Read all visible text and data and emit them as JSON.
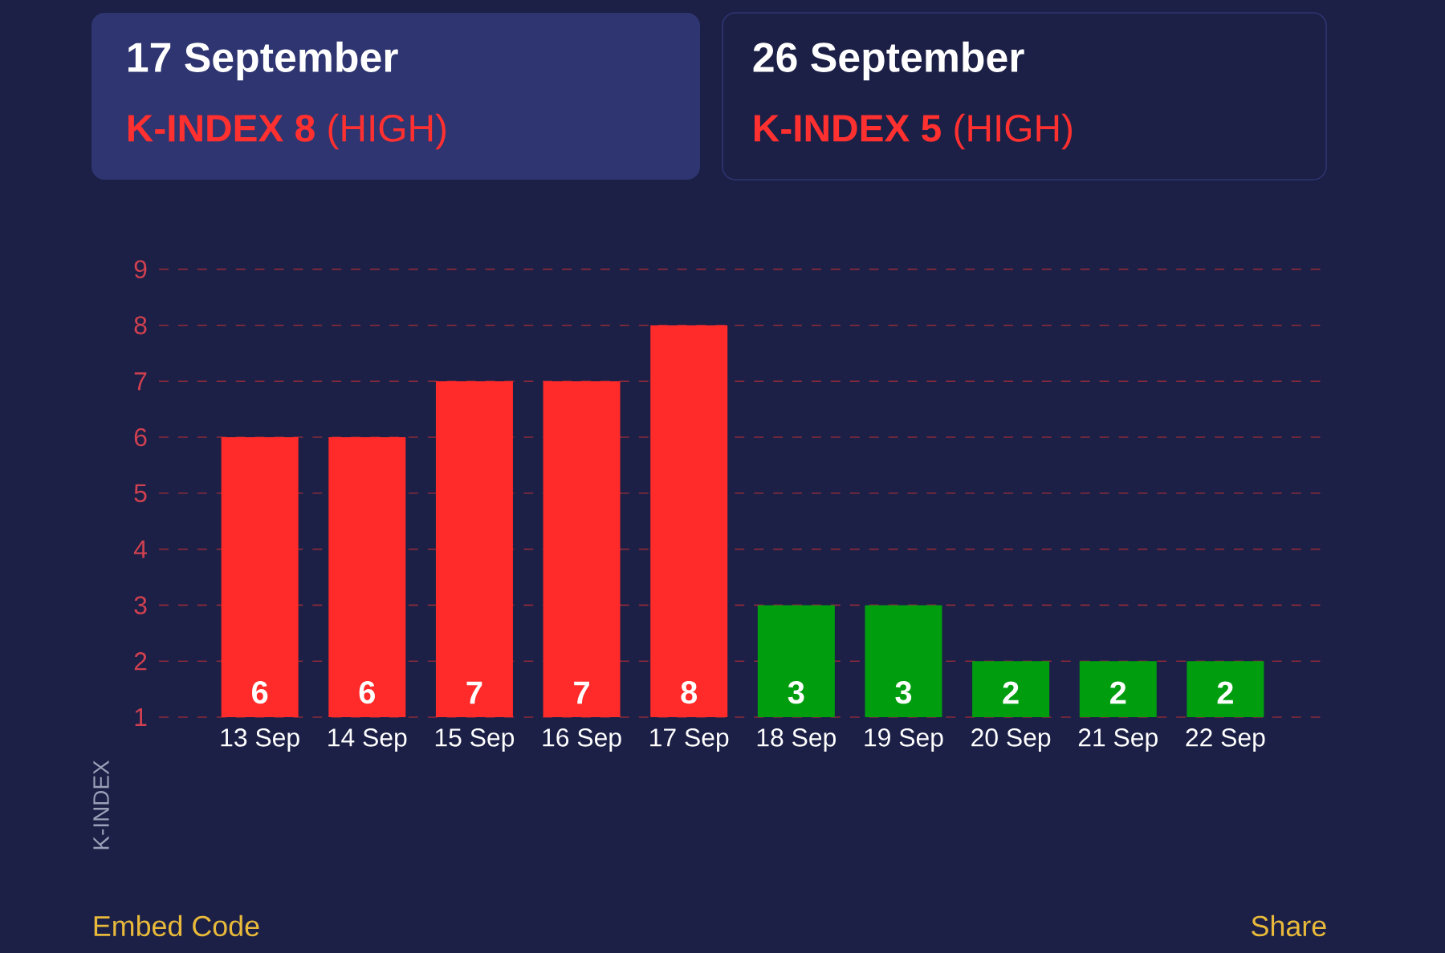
{
  "chart_data": {
    "type": "bar",
    "annotations": [
      "17 September",
      "**K-INDEX 8** (HIGH)",
      "26 September",
      "**K-INDEX 5** (HIGH)",
      "Embed Code",
      "Share",
      "K-INDEX"
    ],
    "categories": [
      "13 Sep",
      "14 Sep",
      "15 Sep",
      "16 Sep",
      "17 Sep",
      "18 Sep",
      "19 Sep",
      "20 Sep",
      "21 Sep",
      "22 Sep"
    ],
    "values": [
      6,
      6,
      7,
      7,
      8,
      3,
      3,
      2,
      2,
      2
    ],
    "colors": [
      "#ff2a2a",
      "#ff2a2a",
      "#ff2a2a",
      "#ff2a2a",
      "#ff2a2a",
      "#009e0f",
      "#009e0f",
      "#009e0f",
      "#009e0f",
      "#009e0f"
    ],
    "data_labels": true,
    "ylim": [
      1,
      9
    ],
    "yticks": [
      1,
      2,
      3,
      4,
      5,
      6,
      7,
      8,
      9
    ],
    "grid": "y"
  }
}
